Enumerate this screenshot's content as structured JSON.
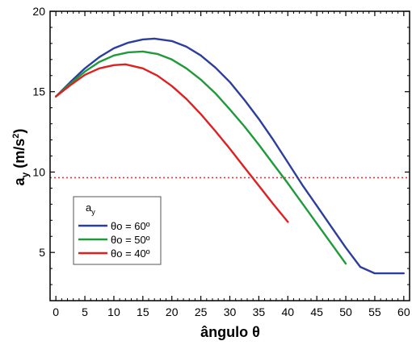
{
  "chart_data": {
    "type": "line",
    "xlabel": "ângulo θ",
    "ylabel_main": "a",
    "ylabel_sub": "y",
    "ylabel_rest": " (m/s",
    "ylabel_sup": "2",
    "ylabel_end": ")",
    "xlim": [
      -1,
      61
    ],
    "ylim": [
      2,
      20
    ],
    "x_ticks": [
      0,
      5,
      10,
      15,
      20,
      25,
      30,
      35,
      40,
      45,
      50,
      55,
      60
    ],
    "y_ticks": [
      5,
      10,
      15,
      20
    ],
    "legend": {
      "title_main": "a",
      "title_sub": "y",
      "placement": "lower-left"
    },
    "series": [
      {
        "name": "θo = 60º",
        "color": "#2b3e9e",
        "x": [
          0,
          2.5,
          5,
          7.5,
          10,
          12.5,
          15,
          17,
          20,
          22.5,
          25,
          27.5,
          30,
          32.5,
          35,
          37.5,
          40,
          42.5,
          45,
          47.5,
          50,
          52.5,
          55,
          57.5,
          60
        ],
        "y": [
          14.7,
          15.6,
          16.45,
          17.15,
          17.7,
          18.05,
          18.25,
          18.3,
          18.15,
          17.8,
          17.25,
          16.5,
          15.6,
          14.5,
          13.3,
          12.0,
          10.6,
          9.2,
          7.9,
          6.6,
          5.3,
          4.1,
          3.7,
          3.7,
          3.7
        ]
      },
      {
        "name": "θo = 50º",
        "color": "#1e9a3a",
        "x": [
          0,
          2.5,
          5,
          7.5,
          10,
          12.5,
          15,
          17.5,
          20,
          22.5,
          25,
          27.5,
          30,
          32.5,
          35,
          37.5,
          40,
          42.5,
          45,
          47.5,
          50
        ],
        "y": [
          14.7,
          15.5,
          16.25,
          16.85,
          17.25,
          17.45,
          17.5,
          17.35,
          17.0,
          16.45,
          15.75,
          14.9,
          13.9,
          12.85,
          11.7,
          10.5,
          9.3,
          8.05,
          6.8,
          5.55,
          4.3
        ]
      },
      {
        "name": "θo = 40º",
        "color": "#e02020",
        "x": [
          0,
          2.5,
          5,
          7.5,
          10,
          12,
          15,
          17.5,
          20,
          22.5,
          25,
          27.5,
          30,
          32.5,
          35,
          37.5,
          40
        ],
        "y": [
          14.7,
          15.4,
          16.05,
          16.45,
          16.65,
          16.7,
          16.45,
          16.0,
          15.35,
          14.55,
          13.6,
          12.55,
          11.45,
          10.3,
          9.15,
          8.0,
          6.9
        ]
      }
    ],
    "reference_line": {
      "y": 9.65,
      "color": "#d04040",
      "style": "dotted"
    },
    "grid": false
  }
}
